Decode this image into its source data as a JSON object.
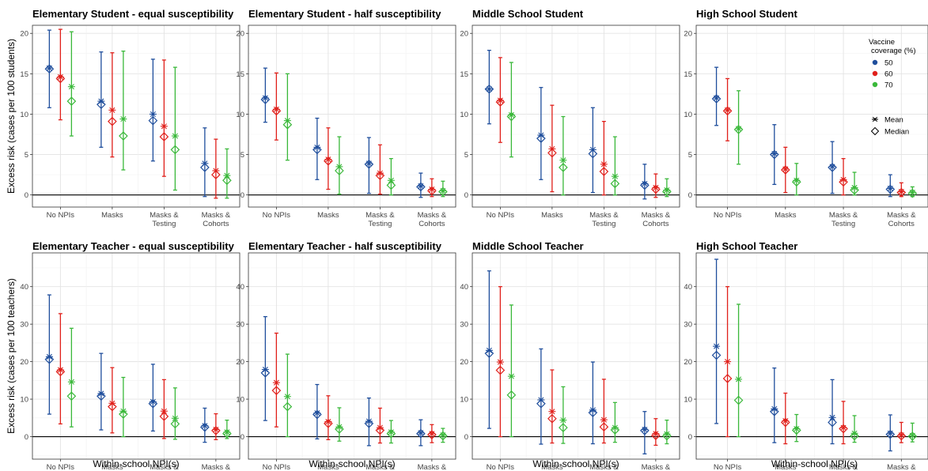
{
  "chart_data": {
    "type": "errorbar",
    "categories": [
      "No NPIs",
      "Masks",
      "Masks & Testing",
      "Masks & Cohorts"
    ],
    "x_tick_labels": [
      [
        "No NPIs"
      ],
      [
        "Masks"
      ],
      [
        "Masks &",
        "Testing"
      ],
      [
        "Masks &",
        "Cohorts"
      ]
    ],
    "xlabel": "Within-school NPI(s)",
    "series_colors": {
      "50": "#1f4e9c",
      "60": "#e0201b",
      "70": "#3ab83a"
    },
    "legend": {
      "title": "Vaccine coverage (%)",
      "title_lines": [
        "Vaccine",
        "coverage (%)"
      ],
      "items": [
        "50",
        "60",
        "70"
      ],
      "markers": [
        "Mean",
        "Median"
      ],
      "placement": "top-right of High School Student panel"
    },
    "rows": [
      {
        "ylabel": "Excess risk (cases per 100 students)",
        "ylim": [
          -1.5,
          21
        ],
        "yticks": [
          0,
          5,
          10,
          15,
          20
        ],
        "panels": [
          {
            "title": "Elementary Student - equal susceptibility",
            "series": [
              {
                "name": "50",
                "lower": [
                  10.8,
                  5.9,
                  4.2,
                  -0.2
                ],
                "upper": [
                  20.4,
                  17.7,
                  16.8,
                  8.3
                ],
                "mean": [
                  15.7,
                  11.6,
                  10.0,
                  3.9
                ],
                "median": [
                  15.6,
                  11.2,
                  9.2,
                  3.4
                ]
              },
              {
                "name": "60",
                "lower": [
                  9.3,
                  4.7,
                  2.3,
                  -0.4
                ],
                "upper": [
                  20.5,
                  17.6,
                  16.7,
                  6.9
                ],
                "mean": [
                  14.6,
                  10.5,
                  8.5,
                  3.0
                ],
                "median": [
                  14.4,
                  9.1,
                  7.2,
                  2.5
                ]
              },
              {
                "name": "70",
                "lower": [
                  7.3,
                  3.1,
                  0.6,
                  -0.4
                ],
                "upper": [
                  20.2,
                  17.8,
                  15.8,
                  5.7
                ],
                "mean": [
                  13.4,
                  9.4,
                  7.3,
                  2.4
                ],
                "median": [
                  11.6,
                  7.3,
                  5.6,
                  1.8
                ]
              }
            ]
          },
          {
            "title": "Elementary Student - half susceptibility",
            "series": [
              {
                "name": "50",
                "lower": [
                  9.0,
                  1.9,
                  0.2,
                  -0.3
                ],
                "upper": [
                  15.7,
                  9.5,
                  7.1,
                  2.7
                ],
                "mean": [
                  12.0,
                  5.9,
                  3.9,
                  1.1
                ],
                "median": [
                  11.8,
                  5.6,
                  3.8,
                  1.0
                ]
              },
              {
                "name": "60",
                "lower": [
                  6.8,
                  0.7,
                  0.1,
                  -0.2
                ],
                "upper": [
                  15.1,
                  8.3,
                  6.2,
                  2.0
                ],
                "mean": [
                  10.6,
                  4.4,
                  2.7,
                  0.7
                ],
                "median": [
                  10.4,
                  4.2,
                  2.4,
                  0.5
                ]
              },
              {
                "name": "70",
                "lower": [
                  4.3,
                  0.1,
                  0.0,
                  -0.2
                ],
                "upper": [
                  15.0,
                  7.2,
                  4.5,
                  1.7
                ],
                "mean": [
                  9.2,
                  3.5,
                  1.8,
                  0.5
                ],
                "median": [
                  8.7,
                  3.0,
                  1.2,
                  0.4
                ]
              }
            ]
          },
          {
            "title": "Middle School Student",
            "series": [
              {
                "name": "50",
                "lower": [
                  8.8,
                  1.9,
                  0.3,
                  -0.5
                ],
                "upper": [
                  17.9,
                  13.3,
                  10.8,
                  3.8
                ],
                "mean": [
                  13.1,
                  7.4,
                  5.6,
                  1.4
                ],
                "median": [
                  13.1,
                  7.0,
                  5.1,
                  1.2
                ]
              },
              {
                "name": "60",
                "lower": [
                  6.5,
                  0.4,
                  0.0,
                  -0.3
                ],
                "upper": [
                  17.0,
                  11.1,
                  9.1,
                  2.6
                ],
                "mean": [
                  11.7,
                  5.7,
                  3.8,
                  0.9
                ],
                "median": [
                  11.5,
                  5.2,
                  2.9,
                  0.7
                ]
              },
              {
                "name": "70",
                "lower": [
                  4.7,
                  0.0,
                  0.0,
                  -0.2
                ],
                "upper": [
                  16.4,
                  9.7,
                  7.2,
                  2.0
                ],
                "mean": [
                  9.9,
                  4.3,
                  2.3,
                  0.6
                ],
                "median": [
                  9.7,
                  3.4,
                  1.4,
                  0.4
                ]
              }
            ]
          },
          {
            "title": "High School Student",
            "series": [
              {
                "name": "50",
                "lower": [
                  8.6,
                  1.3,
                  0.2,
                  -0.2
                ],
                "upper": [
                  15.8,
                  8.7,
                  6.6,
                  2.5
                ],
                "mean": [
                  12.0,
                  5.1,
                  3.5,
                  0.8
                ],
                "median": [
                  11.9,
                  5.0,
                  3.4,
                  0.7
                ]
              },
              {
                "name": "60",
                "lower": [
                  6.7,
                  0.3,
                  0.0,
                  -0.2
                ],
                "upper": [
                  14.4,
                  5.9,
                  4.5,
                  1.5
                ],
                "mean": [
                  10.5,
                  3.2,
                  1.9,
                  0.4
                ],
                "median": [
                  10.4,
                  3.1,
                  1.6,
                  0.3
                ]
              },
              {
                "name": "70",
                "lower": [
                  3.8,
                  0.0,
                  0.0,
                  -0.2
                ],
                "upper": [
                  12.9,
                  3.9,
                  2.8,
                  1.0
                ],
                "mean": [
                  8.2,
                  1.8,
                  0.9,
                  0.3
                ],
                "median": [
                  8.1,
                  1.6,
                  0.6,
                  0.2
                ]
              }
            ]
          }
        ]
      },
      {
        "ylabel": "Excess risk (cases per 100 teachers)",
        "ylim": [
          -6,
          49
        ],
        "yticks": [
          0,
          10,
          20,
          30,
          40
        ],
        "panels": [
          {
            "title": "Elementary Teacher - equal susceptibility",
            "series": [
              {
                "name": "50",
                "lower": [
                  6.0,
                  1.8,
                  1.5,
                  -1.5
                ],
                "upper": [
                  37.8,
                  22.2,
                  19.3,
                  7.6
                ],
                "mean": [
                  21.3,
                  11.5,
                  9.3,
                  2.9
                ],
                "median": [
                  20.6,
                  10.8,
                  8.8,
                  2.5
                ]
              },
              {
                "name": "60",
                "lower": [
                  3.4,
                  1.0,
                  -0.5,
                  -0.8
                ],
                "upper": [
                  32.8,
                  18.4,
                  15.2,
                  6.1
                ],
                "mean": [
                  17.8,
                  8.9,
                  6.8,
                  1.9
                ],
                "median": [
                  17.3,
                  8.0,
                  5.4,
                  1.6
                ]
              },
              {
                "name": "70",
                "lower": [
                  2.6,
                  0.0,
                  -0.7,
                  -0.5
                ],
                "upper": [
                  28.9,
                  15.8,
                  13.0,
                  4.4
                ],
                "mean": [
                  14.6,
                  6.8,
                  4.9,
                  1.2
                ],
                "median": [
                  10.8,
                  6.0,
                  3.4,
                  0.8
                ]
              }
            ]
          },
          {
            "title": "Elementary Teacher - half susceptibility",
            "series": [
              {
                "name": "50",
                "lower": [
                  4.3,
                  -0.6,
                  -2.4,
                  -2.4
                ],
                "upper": [
                  32.0,
                  13.9,
                  10.3,
                  4.5
                ],
                "mean": [
                  17.9,
                  6.3,
                  4.1,
                  1.0
                ],
                "median": [
                  17.0,
                  5.9,
                  3.5,
                  0.8
                ]
              },
              {
                "name": "60",
                "lower": [
                  2.6,
                  -0.8,
                  -1.7,
                  -1.6
                ],
                "upper": [
                  27.6,
                  10.9,
                  7.6,
                  3.2
                ],
                "mean": [
                  14.4,
                  4.0,
                  2.4,
                  0.8
                ],
                "median": [
                  12.3,
                  3.5,
                  1.7,
                  0.5
                ]
              },
              {
                "name": "70",
                "lower": [
                  0.0,
                  -1.2,
                  -1.7,
                  -1.5
                ],
                "upper": [
                  22.0,
                  7.7,
                  4.3,
                  2.2
                ],
                "mean": [
                  10.7,
                  2.6,
                  1.2,
                  0.4
                ],
                "median": [
                  8.0,
                  2.0,
                  0.8,
                  0.2
                ]
              }
            ]
          },
          {
            "title": "Middle School Teacher",
            "series": [
              {
                "name": "50",
                "lower": [
                  2.2,
                  -2.0,
                  -1.9,
                  -4.6
                ],
                "upper": [
                  44.2,
                  23.4,
                  19.9,
                  6.7
                ],
                "mean": [
                  23.0,
                  9.8,
                  7.1,
                  1.9
                ],
                "median": [
                  22.2,
                  8.8,
                  6.4,
                  1.6
                ]
              },
              {
                "name": "60",
                "lower": [
                  0.0,
                  -1.7,
                  -1.7,
                  -2.3
                ],
                "upper": [
                  40.0,
                  17.8,
                  15.3,
                  4.8
                ],
                "mean": [
                  19.9,
                  6.7,
                  4.5,
                  0.8
                ],
                "median": [
                  17.7,
                  4.8,
                  2.6,
                  0.3
                ]
              },
              {
                "name": "70",
                "lower": [
                  0.0,
                  -1.8,
                  -1.5,
                  -1.9
                ],
                "upper": [
                  35.1,
                  13.3,
                  9.1,
                  4.4
                ],
                "mean": [
                  16.1,
                  4.4,
                  2.4,
                  0.7
                ],
                "median": [
                  11.1,
                  2.4,
                  1.8,
                  0.2
                ]
              }
            ]
          },
          {
            "title": "High School Teacher",
            "series": [
              {
                "name": "50",
                "lower": [
                  3.5,
                  -1.6,
                  -1.9,
                  -3.8
                ],
                "upper": [
                  47.3,
                  18.3,
                  15.2,
                  5.8
                ],
                "mean": [
                  24.1,
                  7.4,
                  5.1,
                  0.9
                ],
                "median": [
                  21.7,
                  6.7,
                  3.8,
                  0.6
                ]
              },
              {
                "name": "60",
                "lower": [
                  0.0,
                  -1.9,
                  -1.9,
                  -1.6
                ],
                "upper": [
                  40.0,
                  11.6,
                  9.4,
                  3.8
                ],
                "mean": [
                  20.0,
                  4.2,
                  2.4,
                  0.4
                ],
                "median": [
                  15.5,
                  3.8,
                  2.1,
                  0.2
                ]
              },
              {
                "name": "70",
                "lower": [
                  0.0,
                  -1.3,
                  -1.5,
                  -1.4
                ],
                "upper": [
                  35.3,
                  5.9,
                  5.6,
                  3.6
                ],
                "mean": [
                  15.3,
                  2.1,
                  0.9,
                  0.3
                ],
                "median": [
                  9.7,
                  1.7,
                  0.2,
                  0.1
                ]
              }
            ]
          }
        ]
      }
    ]
  }
}
